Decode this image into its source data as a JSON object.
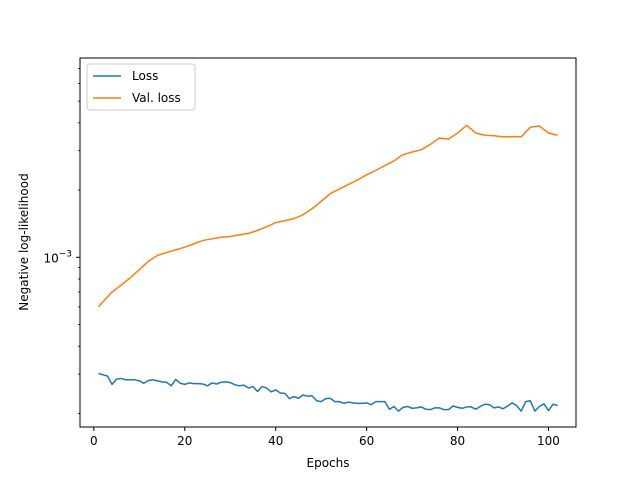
{
  "chart_data": {
    "type": "line",
    "title": "",
    "xlabel": "Epochs",
    "ylabel": "Negative log-likelihood",
    "yscale": "log",
    "xlim": [
      -3.05,
      106.05
    ],
    "ylim": [
      0.000174,
      0.0078
    ],
    "xticks": [
      0,
      20,
      40,
      60,
      80,
      100
    ],
    "xtick_labels": [
      "0",
      "20",
      "40",
      "60",
      "80",
      "100"
    ],
    "yticks": [
      0.001
    ],
    "ytick_labels": [
      {
        "base": "10",
        "exp": "−3"
      }
    ],
    "legend_position": "upper-left",
    "grid": false,
    "series": [
      {
        "name": "Loss",
        "color": "#1f77b4",
        "x": [
          1,
          2,
          3,
          4,
          5,
          6,
          7,
          8,
          9,
          10,
          11,
          12,
          13,
          14,
          15,
          16,
          17,
          18,
          19,
          20,
          21,
          22,
          23,
          24,
          25,
          26,
          27,
          28,
          29,
          30,
          31,
          32,
          33,
          34,
          35,
          36,
          37,
          38,
          39,
          40,
          41,
          42,
          43,
          44,
          45,
          46,
          47,
          48,
          49,
          50,
          51,
          52,
          53,
          54,
          55,
          56,
          57,
          58,
          59,
          60,
          61,
          62,
          63,
          64,
          65,
          66,
          67,
          68,
          69,
          70,
          71,
          72,
          73,
          74,
          75,
          76,
          77,
          78,
          79,
          80,
          81,
          82,
          83,
          84,
          85,
          86,
          87,
          88,
          89,
          90,
          91,
          92,
          93,
          94,
          95,
          96,
          97,
          98,
          99,
          100,
          101,
          102
        ],
        "y": [
          0.000302,
          0.000298,
          0.000294,
          0.00027,
          0.000285,
          0.000287,
          0.000283,
          0.000283,
          0.000283,
          0.00028,
          0.000273,
          0.000281,
          0.000283,
          0.00028,
          0.000277,
          0.000276,
          0.000266,
          0.000284,
          0.000273,
          0.00027,
          0.000274,
          0.000272,
          0.000272,
          0.000271,
          0.000266,
          0.000274,
          0.000271,
          0.000276,
          0.000277,
          0.000275,
          0.000269,
          0.000266,
          0.000268,
          0.00026,
          0.000264,
          0.000251,
          0.000264,
          0.00026,
          0.00025,
          0.000255,
          0.000247,
          0.000246,
          0.000233,
          0.000238,
          0.000234,
          0.000242,
          0.000239,
          0.00024,
          0.000228,
          0.000226,
          0.000233,
          0.000234,
          0.000226,
          0.000226,
          0.000222,
          0.000225,
          0.000223,
          0.000222,
          0.000222,
          0.000223,
          0.000219,
          0.000226,
          0.000226,
          0.000226,
          0.000209,
          0.000215,
          0.000205,
          0.000213,
          0.000215,
          0.000211,
          0.000212,
          0.000214,
          0.000209,
          0.000208,
          0.000212,
          0.000212,
          0.000208,
          0.000208,
          0.000216,
          0.000213,
          0.000211,
          0.000214,
          0.000214,
          0.000209,
          0.000215,
          0.00022,
          0.000219,
          0.000212,
          0.000214,
          0.00021,
          0.000216,
          0.000223,
          0.000217,
          0.000205,
          0.000226,
          0.000228,
          0.000205,
          0.000215,
          0.000221,
          0.000206,
          0.00022,
          0.000217
        ],
        "y_note": ""
      },
      {
        "name": "Val. loss",
        "color": "#ff7f0e",
        "x": [
          1,
          4,
          6,
          8,
          10,
          12,
          14,
          16,
          18,
          20,
          22,
          24,
          26,
          28,
          30,
          32,
          34,
          36,
          38,
          40,
          42,
          44,
          46,
          48,
          50,
          52,
          54,
          56,
          58,
          60,
          62,
          64,
          66,
          68,
          70,
          72,
          74,
          76,
          78,
          80,
          82,
          84,
          86,
          88,
          90,
          92,
          94,
          96,
          98,
          100,
          102
        ],
        "y": [
          0.0006,
          0.0007,
          0.00075,
          0.00081,
          0.00088,
          0.00096,
          0.00102,
          0.00105,
          0.00108,
          0.00111,
          0.00115,
          0.00119,
          0.00121,
          0.00123,
          0.00124,
          0.00126,
          0.00128,
          0.00132,
          0.00137,
          0.00143,
          0.00146,
          0.00149,
          0.00155,
          0.00165,
          0.00178,
          0.00193,
          0.00202,
          0.00212,
          0.00222,
          0.00234,
          0.00245,
          0.00257,
          0.0027,
          0.00288,
          0.00296,
          0.00303,
          0.0032,
          0.00342,
          0.00338,
          0.0036,
          0.0039,
          0.0036,
          0.00352,
          0.0035,
          0.00346,
          0.00347,
          0.00346,
          0.00382,
          0.00387,
          0.0036,
          0.00352
        ]
      }
    ]
  }
}
